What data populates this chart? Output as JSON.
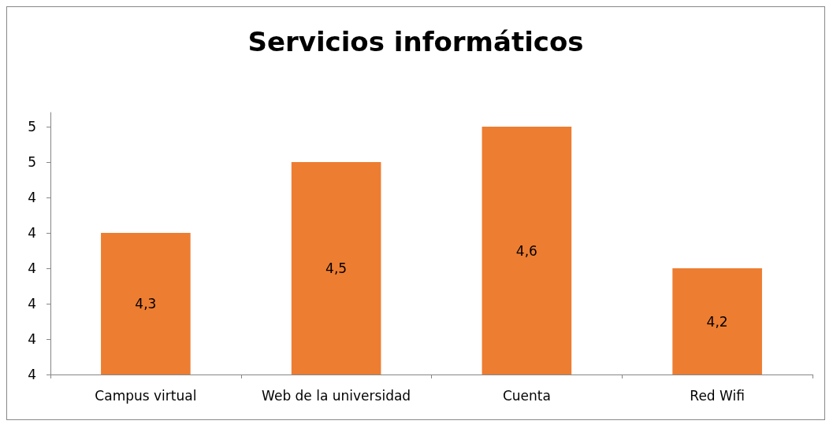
{
  "chart_data": {
    "type": "bar",
    "title": "Servicios informáticos",
    "categories": [
      "Campus virtual",
      "Web de la universidad",
      "Cuenta",
      "Red Wifi"
    ],
    "values": [
      4.3,
      4.5,
      4.6,
      4.2
    ],
    "value_labels": [
      "4,3",
      "4,5",
      "4,6",
      "4,2"
    ],
    "color": "#ed7d31",
    "ylim": [
      3.9,
      4.64
    ],
    "yticks": [
      {
        "value": 3.9,
        "label": "4"
      },
      {
        "value": 4.0,
        "label": "4"
      },
      {
        "value": 4.1,
        "label": "4"
      },
      {
        "value": 4.2,
        "label": "4"
      },
      {
        "value": 4.3,
        "label": "4"
      },
      {
        "value": 4.4,
        "label": "4"
      },
      {
        "value": 4.5,
        "label": "5"
      },
      {
        "value": 4.6,
        "label": "5"
      }
    ],
    "grid": false
  }
}
